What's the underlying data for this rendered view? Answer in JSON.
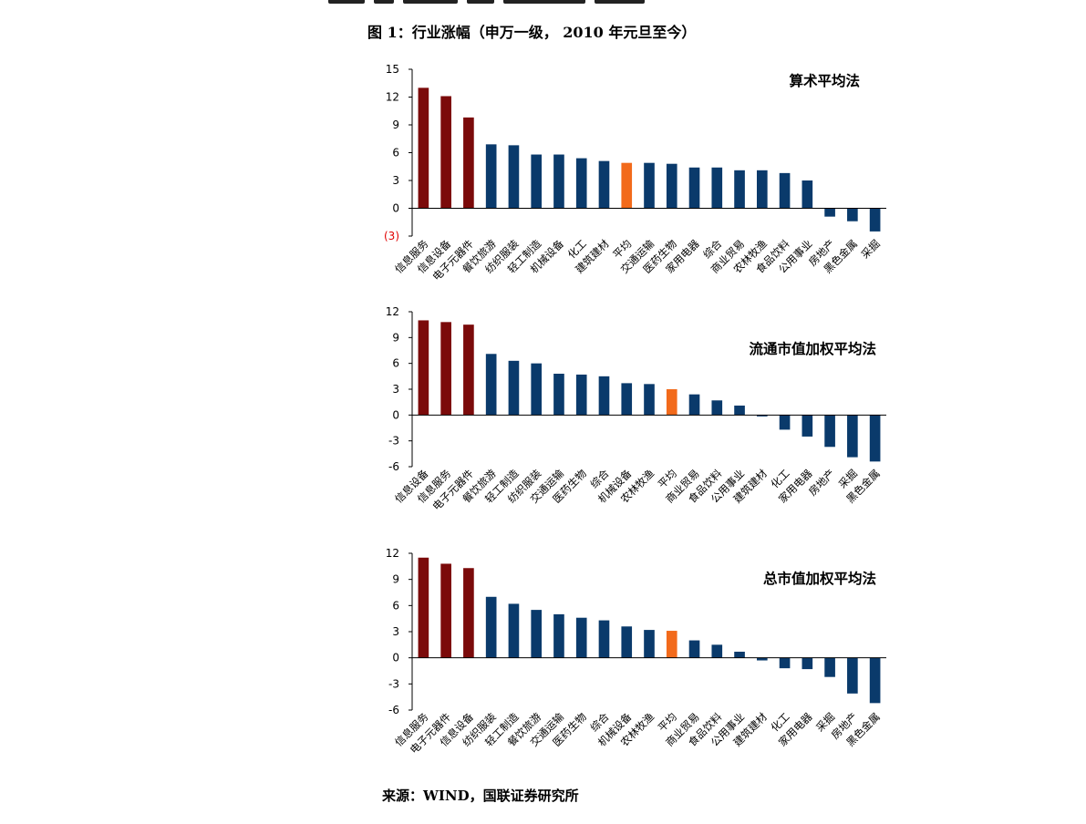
{
  "figure_title": "图 1：行业涨幅（申万一级， 2010 年元旦至今）",
  "source": "来源：WIND，国联证券研究所",
  "colors": {
    "top3": "#7B0A0A",
    "normal": "#0A3A6B",
    "average": "#F26A1B",
    "negative_tick": "#E00000"
  },
  "chart_data": [
    {
      "type": "bar",
      "title": "算术平均法",
      "ylim": [
        -3,
        15
      ],
      "yticks": [
        15,
        12,
        9,
        6,
        3,
        0,
        -3
      ],
      "ytick_labels": [
        "15",
        "12",
        "9",
        "6",
        "3",
        "0",
        "(3)"
      ],
      "categories": [
        "信息服务",
        "信息设备",
        "电子元器件",
        "餐饮旅游",
        "纺织服装",
        "轻工制造",
        "机械设备",
        "化工",
        "建筑建材",
        "平均",
        "交通运输",
        "医药生物",
        "家用电器",
        "综合",
        "商业贸易",
        "农林牧渔",
        "食品饮料",
        "公用事业",
        "房地产",
        "黑色金属",
        "采掘"
      ],
      "values": [
        13.0,
        12.1,
        9.8,
        6.9,
        6.8,
        5.8,
        5.8,
        5.4,
        5.1,
        4.9,
        4.9,
        4.8,
        4.4,
        4.4,
        4.1,
        4.1,
        3.8,
        3.0,
        -0.9,
        -1.4,
        -2.5
      ],
      "top3_count": 3,
      "average_label": "平均",
      "grid": false,
      "legend": "none"
    },
    {
      "type": "bar",
      "title": "流通市值加权平均法",
      "ylim": [
        -6,
        12
      ],
      "yticks": [
        12,
        9,
        6,
        3,
        0,
        -3,
        -6
      ],
      "ytick_labels": [
        "12",
        "9",
        "6",
        "3",
        "0",
        "-3",
        "-6"
      ],
      "categories": [
        "信息设备",
        "信息服务",
        "电子元器件",
        "餐饮旅游",
        "轻工制造",
        "纺织服装",
        "交通运输",
        "医药生物",
        "综合",
        "机械设备",
        "农林牧渔",
        "平均",
        "商业贸易",
        "食品饮料",
        "公用事业",
        "建筑建材",
        "化工",
        "家用电器",
        "房地产",
        "采掘",
        "黑色金属"
      ],
      "values": [
        11.0,
        10.8,
        10.5,
        7.1,
        6.3,
        6.0,
        4.8,
        4.7,
        4.5,
        3.7,
        3.6,
        3.0,
        2.4,
        1.7,
        1.1,
        0.0,
        -1.7,
        -2.5,
        -3.7,
        -4.9,
        -5.4
      ],
      "top3_count": 3,
      "average_label": "平均",
      "grid": false,
      "legend": "none"
    },
    {
      "type": "bar",
      "title": "总市值加权平均法",
      "ylim": [
        -6,
        12
      ],
      "yticks": [
        12,
        9,
        6,
        3,
        0,
        -3,
        -6
      ],
      "ytick_labels": [
        "12",
        "9",
        "6",
        "3",
        "0",
        "-3",
        "-6"
      ],
      "categories": [
        "信息服务",
        "电子元器件",
        "信息设备",
        "纺织服装",
        "轻工制造",
        "餐饮旅游",
        "交通运输",
        "医药生物",
        "综合",
        "机械设备",
        "农林牧渔",
        "平均",
        "商业贸易",
        "食品饮料",
        "公用事业",
        "建筑建材",
        "化工",
        "家用电器",
        "采掘",
        "房地产",
        "黑色金属"
      ],
      "values": [
        11.5,
        10.8,
        10.3,
        7.0,
        6.2,
        5.5,
        5.0,
        4.6,
        4.3,
        3.6,
        3.2,
        3.1,
        2.0,
        1.5,
        0.7,
        -0.3,
        -1.2,
        -1.3,
        -2.2,
        -4.1,
        -5.2
      ],
      "top3_count": 3,
      "average_label": "平均",
      "grid": false,
      "legend": "none"
    }
  ]
}
